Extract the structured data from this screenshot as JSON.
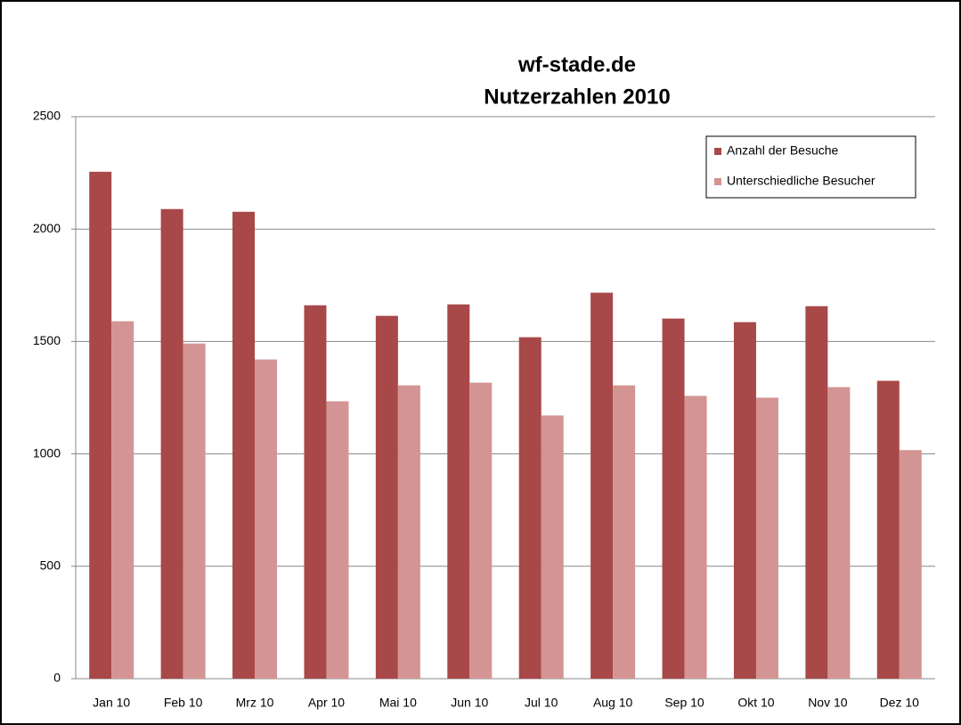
{
  "chart_data": {
    "type": "bar",
    "title": [
      "wf-stade.de",
      "Nutzerzahlen 2010"
    ],
    "categories": [
      "Jan 10",
      "Feb 10",
      "Mrz 10",
      "Apr 10",
      "Mai 10",
      "Jun 10",
      "Jul 10",
      "Aug 10",
      "Sep 10",
      "Okt 10",
      "Nov 10",
      "Dez 10"
    ],
    "series": [
      {
        "name": "Anzahl der Besuche",
        "color": "#a84848",
        "values": [
          2255,
          2089,
          2077,
          1661,
          1614,
          1665,
          1519,
          1717,
          1602,
          1586,
          1657,
          1325
        ]
      },
      {
        "name": "Unterschiedliche Besucher",
        "color": "#d49494",
        "values": [
          1590,
          1491,
          1420,
          1234,
          1305,
          1317,
          1171,
          1305,
          1258,
          1250,
          1297,
          1017
        ]
      }
    ],
    "ylim": [
      0,
      2500
    ],
    "yticks": [
      0,
      500,
      1000,
      1500,
      2000,
      2500
    ],
    "grid": true,
    "legend": "top-right"
  }
}
